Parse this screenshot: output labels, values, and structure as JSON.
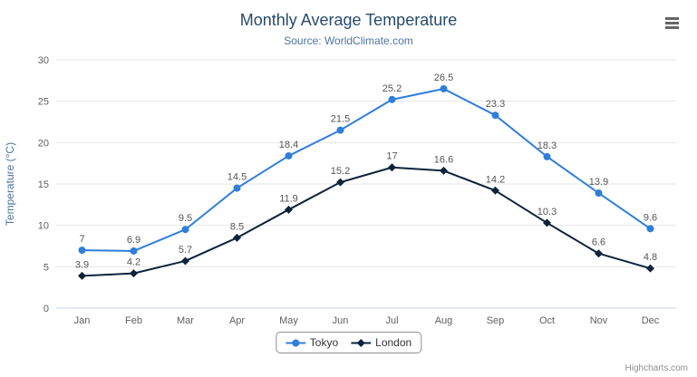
{
  "chart": {
    "title": "Monthly Average Temperature",
    "subtitle": "Source: WorldClimate.com",
    "credits": "Highcharts.com",
    "export_menu_icon": "hamburger-icon",
    "colors": {
      "grid": "#e6e6e6",
      "axis_line": "#c0d0e0",
      "axis_labels": "#606060",
      "title": "#274b6d",
      "subtitle": "#4d759e",
      "data_labels": "#555555"
    }
  },
  "chart_data": {
    "type": "line",
    "title": "Monthly Average Temperature",
    "subtitle": "Source: WorldClimate.com",
    "categories": [
      "Jan",
      "Feb",
      "Mar",
      "Apr",
      "May",
      "Jun",
      "Jul",
      "Aug",
      "Sep",
      "Oct",
      "Nov",
      "Dec"
    ],
    "series": [
      {
        "name": "Tokyo",
        "color": "#2f7ed8",
        "marker": "circle",
        "values": [
          7,
          6.9,
          9.5,
          14.5,
          18.4,
          21.5,
          25.2,
          26.5,
          23.3,
          18.3,
          13.9,
          9.6
        ]
      },
      {
        "name": "London",
        "color": "#0d233a",
        "marker": "diamond",
        "values": [
          3.9,
          4.2,
          5.7,
          8.5,
          11.9,
          15.2,
          17,
          16.6,
          14.2,
          10.3,
          6.6,
          4.8
        ]
      }
    ],
    "xlabel": "",
    "ylabel": "Temperature (°C)",
    "ylim": [
      0,
      30
    ],
    "ytick_step": 5,
    "grid": true,
    "legend_position": "bottom",
    "data_labels": true
  }
}
